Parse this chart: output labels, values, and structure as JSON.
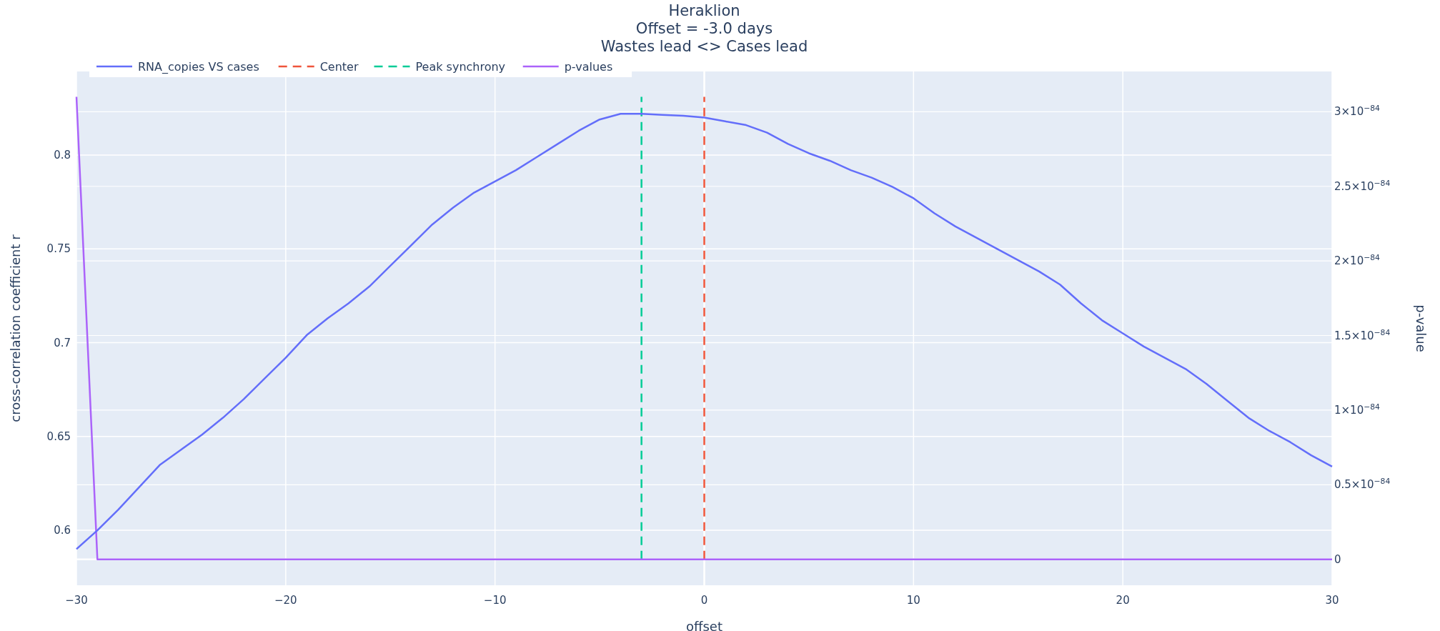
{
  "chart_data": {
    "type": "line",
    "title": "Heraklion",
    "subtitle": "Offset = -3.0 days",
    "annotations": [
      "Wastes lead <> Cases lead"
    ],
    "xlabel": "offset",
    "ylabel": "cross-correlation coefficient r",
    "y2label": "p-value",
    "x": [
      -30,
      -29,
      -28,
      -27,
      -26,
      -25,
      -24,
      -23,
      -22,
      -21,
      -20,
      -19,
      -18,
      -17,
      -16,
      -15,
      -14,
      -13,
      -12,
      -11,
      -10,
      -9,
      -8,
      -7,
      -6,
      -5,
      -4,
      -3,
      -2,
      -1,
      0,
      1,
      2,
      3,
      4,
      5,
      6,
      7,
      8,
      9,
      10,
      11,
      12,
      13,
      14,
      15,
      16,
      17,
      18,
      19,
      20,
      21,
      22,
      23,
      24,
      25,
      26,
      27,
      28,
      29,
      30
    ],
    "series": [
      {
        "name": "RNA_copies VS cases",
        "color": "#636efa",
        "values": [
          0.59,
          0.6,
          0.611,
          0.623,
          0.635,
          0.643,
          0.651,
          0.66,
          0.67,
          0.681,
          0.692,
          0.704,
          0.713,
          0.721,
          0.73,
          0.741,
          0.752,
          0.763,
          0.772,
          0.78,
          0.786,
          0.792,
          0.799,
          0.806,
          0.813,
          0.819,
          0.822,
          0.822,
          0.8215,
          0.821,
          0.82,
          0.818,
          0.816,
          0.812,
          0.806,
          0.801,
          0.797,
          0.792,
          0.788,
          0.783,
          0.777,
          0.769,
          0.762,
          0.756,
          0.75,
          0.744,
          0.738,
          0.731,
          0.721,
          0.712,
          0.705,
          0.698,
          0.692,
          0.686,
          0.678,
          0.669,
          0.66,
          0.653,
          0.647,
          0.64,
          0.634
        ]
      },
      {
        "name": "p-values",
        "color": "#ab63fa",
        "axis": "y2",
        "values": [
          3.1e-84,
          0,
          0,
          0,
          0,
          0,
          0,
          0,
          0,
          0,
          0,
          0,
          0,
          0,
          0,
          0,
          0,
          0,
          0,
          0,
          0,
          0,
          0,
          0,
          0,
          0,
          0,
          0,
          0,
          0,
          0,
          0,
          0,
          0,
          0,
          0,
          0,
          0,
          0,
          0,
          0,
          0,
          0,
          0,
          0,
          0,
          0,
          0,
          0,
          0,
          0,
          0,
          0,
          0,
          0,
          0,
          0,
          0,
          0,
          0,
          0
        ]
      }
    ],
    "ref_lines": [
      {
        "axis": "x",
        "value": 0,
        "label": "Center",
        "color": "#ef553b",
        "line_style": "dashed"
      },
      {
        "axis": "x",
        "value": -3,
        "label": "Peak synchrony",
        "color": "#00cc96",
        "line_style": "dashed"
      }
    ],
    "xlim": [
      -30,
      30
    ],
    "xticks": [
      {
        "value": -30,
        "label": "−30"
      },
      {
        "value": -20,
        "label": "−20"
      },
      {
        "value": -10,
        "label": "−10"
      },
      0,
      10,
      20,
      30
    ],
    "ylim": [
      0.5707,
      0.8446
    ],
    "yticks": [
      0.6,
      0.65,
      0.7,
      0.75,
      0.8
    ],
    "y2lim": [
      -1.74e-85,
      3.27e-84
    ],
    "y2ticks": [
      0,
      {
        "value": 5e-85,
        "label": "0.5×10$^{−84}$"
      },
      {
        "value": 1e-84,
        "label": "1×10$^{−84}$"
      },
      {
        "value": 1.5e-84,
        "label": "1.5×10$^{−84}$"
      },
      {
        "value": 2e-84,
        "label": "2×10$^{−84}$"
      },
      {
        "value": 2.5e-84,
        "label": "2.5×10$^{−84}$"
      },
      {
        "value": 3e-84,
        "label": "3×10$^{−84}$"
      }
    ],
    "grid": true,
    "legend": "top left",
    "line_style": "solid",
    "marker": "none"
  }
}
